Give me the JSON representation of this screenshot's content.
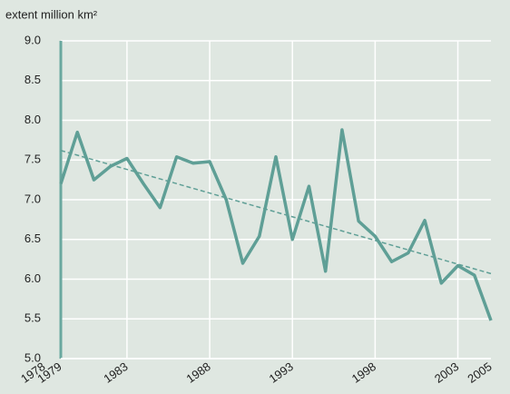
{
  "chart_data": {
    "type": "line",
    "ylabel": "extent million km²",
    "x": [
      1979,
      1980,
      1981,
      1982,
      1983,
      1984,
      1985,
      1986,
      1987,
      1988,
      1989,
      1990,
      1991,
      1992,
      1993,
      1994,
      1995,
      1996,
      1997,
      1998,
      1999,
      2000,
      2001,
      2002,
      2003,
      2004,
      2005
    ],
    "series": [
      {
        "color": "#5f9f96",
        "values": [
          7.2,
          7.85,
          7.25,
          7.42,
          7.52,
          7.2,
          6.9,
          7.54,
          7.46,
          7.48,
          7.0,
          6.2,
          6.54,
          7.54,
          6.5,
          7.17,
          6.1,
          7.88,
          6.73,
          6.54,
          6.22,
          6.33,
          6.74,
          5.95,
          6.17,
          6.05,
          5.48
        ]
      }
    ],
    "trendline": {
      "x": [
        1979,
        2005
      ],
      "values": [
        7.62,
        6.07
      ],
      "color": "#5f9f96"
    },
    "xlim": [
      1979,
      2005
    ],
    "xticks": [
      1978,
      1979,
      1983,
      1988,
      1993,
      1998,
      2003,
      2005
    ],
    "ylim": [
      5,
      9
    ],
    "yticks": [
      {
        "value": 5,
        "label": "5.0"
      },
      5.5,
      {
        "value": 6,
        "label": "6.0"
      },
      6.5,
      {
        "value": 7,
        "label": "7.0"
      },
      7.5,
      {
        "value": 8,
        "label": "8.0"
      },
      8.5,
      {
        "value": 9,
        "label": "9.0"
      }
    ],
    "grid": true
  }
}
